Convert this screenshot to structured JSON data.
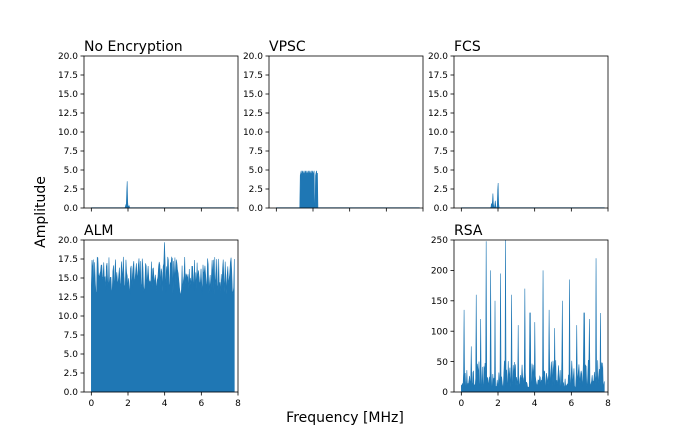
{
  "figure": {
    "ylabel": "Amplitude",
    "xlabel": "Frequency [MHz]",
    "series_color": "#1f77b4",
    "axis_color": "#000000"
  },
  "chart_data": [
    {
      "type": "area",
      "title": "No Encryption",
      "xlim": [
        -0.4,
        8
      ],
      "ylim": [
        0,
        20
      ],
      "xticks": [
        0,
        2,
        4,
        6,
        8
      ],
      "show_xtick_labels": false,
      "yticks": [
        "0.0",
        "2.5",
        "5.0",
        "7.5",
        "10.0",
        "12.5",
        "15.0",
        "17.5",
        "20.0"
      ],
      "spectrum": {
        "profile": "peak",
        "x_range": [
          0,
          7.8
        ],
        "points": 300,
        "base": 0.05,
        "peaks": [
          {
            "x": 1.95,
            "y": 4.2
          },
          {
            "x": 1.88,
            "y": 0.4
          },
          {
            "x": 2.05,
            "y": 0.4
          }
        ]
      }
    },
    {
      "type": "area",
      "title": "VPSC",
      "xlim": [
        -0.4,
        8
      ],
      "ylim": [
        0,
        20
      ],
      "xticks": [
        0,
        2,
        4,
        6,
        8
      ],
      "show_xtick_labels": false,
      "yticks": [
        "0.0",
        "2.5",
        "5.0",
        "7.5",
        "10.0",
        "12.5",
        "15.0",
        "17.5",
        "20.0"
      ],
      "spectrum": {
        "profile": "band",
        "x_range": [
          0,
          7.8
        ],
        "points": 300,
        "base": 0.05,
        "band": {
          "x_start": 1.3,
          "x_end": 2.25,
          "level": 4.6,
          "jitter": 0.5,
          "gap_start": 2.07,
          "gap_end": 2.13
        }
      }
    },
    {
      "type": "area",
      "title": "FCS",
      "xlim": [
        -0.4,
        8
      ],
      "ylim": [
        0,
        20
      ],
      "xticks": [
        0,
        2,
        4,
        6,
        8
      ],
      "show_xtick_labels": false,
      "yticks": [
        "0.0",
        "2.5",
        "5.0",
        "7.5",
        "10.0",
        "12.5",
        "15.0",
        "17.5",
        "20.0"
      ],
      "spectrum": {
        "profile": "peak",
        "x_range": [
          0,
          7.8
        ],
        "points": 300,
        "base": 0.05,
        "peaks": [
          {
            "x": 2.0,
            "y": 4.2
          },
          {
            "x": 1.72,
            "y": 2.0
          },
          {
            "x": 1.85,
            "y": 1.0
          },
          {
            "x": 1.65,
            "y": 0.7
          }
        ]
      }
    },
    {
      "type": "area",
      "title": "ALM",
      "xlim": [
        -0.4,
        8
      ],
      "ylim": [
        0,
        20
      ],
      "xticks": [
        0,
        2,
        4,
        6,
        8
      ],
      "show_xtick_labels": true,
      "yticks": [
        "0.0",
        "2.5",
        "5.0",
        "7.5",
        "10.0",
        "12.5",
        "15.0",
        "17.5",
        "20.0"
      ],
      "spectrum": {
        "profile": "noise",
        "x_range": [
          0,
          7.8
        ],
        "points": 220,
        "floor": 12.8,
        "ceiling": 17.8,
        "max_peak": 19.7,
        "max_peak_x": 4.0,
        "seed": 7
      }
    },
    {
      "type": "area",
      "title": "RSA",
      "xlim": [
        -0.4,
        8
      ],
      "ylim": [
        0,
        250
      ],
      "xticks": [
        0,
        2,
        4,
        6,
        8
      ],
      "show_xtick_labels": true,
      "yticks": [
        "0",
        "50",
        "100",
        "150",
        "200",
        "250"
      ],
      "spectrum": {
        "profile": "spiky",
        "x_range": [
          0,
          7.8
        ],
        "points": 260,
        "floor": 8,
        "typical": 45,
        "spikes": [
          {
            "x": 0.15,
            "y": 135
          },
          {
            "x": 0.55,
            "y": 75
          },
          {
            "x": 0.8,
            "y": 160
          },
          {
            "x": 1.05,
            "y": 120
          },
          {
            "x": 1.35,
            "y": 248
          },
          {
            "x": 1.6,
            "y": 200
          },
          {
            "x": 1.85,
            "y": 150
          },
          {
            "x": 2.15,
            "y": 195
          },
          {
            "x": 2.4,
            "y": 250
          },
          {
            "x": 2.75,
            "y": 160
          },
          {
            "x": 3.1,
            "y": 110
          },
          {
            "x": 3.45,
            "y": 170
          },
          {
            "x": 3.75,
            "y": 130
          },
          {
            "x": 4.0,
            "y": 115
          },
          {
            "x": 4.45,
            "y": 200
          },
          {
            "x": 4.8,
            "y": 135
          },
          {
            "x": 5.1,
            "y": 105
          },
          {
            "x": 5.5,
            "y": 150
          },
          {
            "x": 5.9,
            "y": 185
          },
          {
            "x": 6.3,
            "y": 110
          },
          {
            "x": 6.7,
            "y": 130
          },
          {
            "x": 7.0,
            "y": 120
          },
          {
            "x": 7.35,
            "y": 220
          },
          {
            "x": 7.6,
            "y": 130
          }
        ],
        "seed": 11
      }
    }
  ]
}
